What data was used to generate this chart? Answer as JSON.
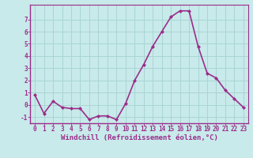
{
  "x": [
    0,
    1,
    2,
    3,
    4,
    5,
    6,
    7,
    8,
    9,
    10,
    11,
    12,
    13,
    14,
    15,
    16,
    17,
    18,
    19,
    20,
    21,
    22,
    23
  ],
  "y": [
    0.8,
    -0.7,
    0.3,
    -0.2,
    -0.3,
    -0.3,
    -1.2,
    -0.9,
    -0.9,
    -1.2,
    0.1,
    2.0,
    3.3,
    4.8,
    6.0,
    7.2,
    7.7,
    7.7,
    4.8,
    2.6,
    2.2,
    1.2,
    0.5,
    -0.2
  ],
  "line_color": "#9b2d8b",
  "marker": "D",
  "marker_size": 2.0,
  "bg_color": "#c8eaea",
  "grid_color": "#aad4d4",
  "xlabel": "Windchill (Refroidissement éolien,°C)",
  "ylabel": "",
  "ylim": [
    -1.5,
    8.2
  ],
  "xlim": [
    -0.5,
    23.5
  ],
  "yticks": [
    -1,
    0,
    1,
    2,
    3,
    4,
    5,
    6,
    7
  ],
  "xticks": [
    0,
    1,
    2,
    3,
    4,
    5,
    6,
    7,
    8,
    9,
    10,
    11,
    12,
    13,
    14,
    15,
    16,
    17,
    18,
    19,
    20,
    21,
    22,
    23
  ],
  "tick_color": "#9b2d8b",
  "tick_fontsize": 5.5,
  "xlabel_fontsize": 6.5,
  "linewidth": 1.2,
  "spine_color": "#9b2d8b"
}
